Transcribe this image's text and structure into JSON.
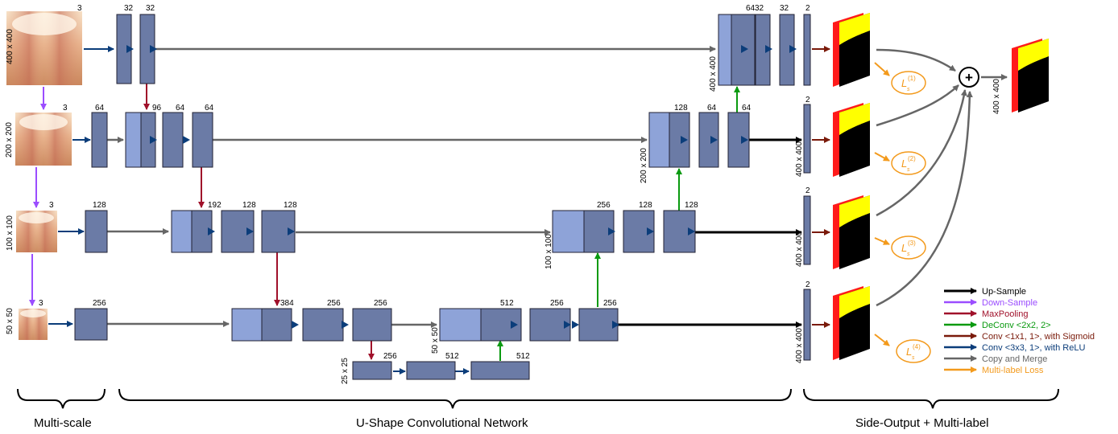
{
  "input_sizes": {
    "s400": "400 x 400",
    "s200": "200 x 200",
    "s100": "100 x 100",
    "s50": "50 x 50",
    "s25": "25 x 25"
  },
  "channels": {
    "in1": "3",
    "r1a": "32",
    "r1b": "32",
    "r1d": "64",
    "r1e": "32",
    "r1f": "32",
    "r1g": "2",
    "in2": "3",
    "r2a": "64",
    "r2b": "96",
    "r2c": "64",
    "r2d": "64",
    "r2e": "128",
    "r2f": "64",
    "r2g": "64",
    "r2so": "2",
    "in3": "3",
    "r3a": "128",
    "r3b": "192",
    "r3c": "128",
    "r3d": "128",
    "r3e": "256",
    "r3f": "128",
    "r3g": "128",
    "r3so": "2",
    "in4": "3",
    "r4a": "256",
    "r4b": "384",
    "r4c": "256",
    "r4d": "256",
    "r4e": "512",
    "r4f": "256",
    "r4g": "256",
    "r4so": "2",
    "r5a": "256",
    "r5b": "512",
    "r5c": "512"
  },
  "loss_labels": [
    "(1)",
    "(2)",
    "(3)",
    "(4)"
  ],
  "loss_symbol": "L",
  "loss_sub": "s",
  "fusion_symbol": "+",
  "legend": [
    {
      "label": "Up-Sample",
      "color": "#000000"
    },
    {
      "label": "Down-Sample",
      "color": "#9b4dff"
    },
    {
      "label": "MaxPooling",
      "color": "#a0102a"
    },
    {
      "label": "DeConv <2x2, 2>",
      "color": "#0a9a10"
    },
    {
      "label": "Conv <1x1, 1>, with Sigmoid",
      "color": "#7a1a0a"
    },
    {
      "label": "Conv <3x3, 1>, with ReLU",
      "color": "#0b3d7a"
    },
    {
      "label": "Copy and Merge",
      "color": "#666666"
    },
    {
      "label": "Multi-label Loss",
      "color": "#f39a1c"
    }
  ],
  "captions": {
    "multi_scale": "Multi-scale",
    "unet": "U-Shape Convolutional Network",
    "side_output": "Side-Output + Multi-label"
  },
  "colors": {
    "block": "#6b7ba6",
    "block_light": "#8ea3d8",
    "block_border": "#222233"
  }
}
